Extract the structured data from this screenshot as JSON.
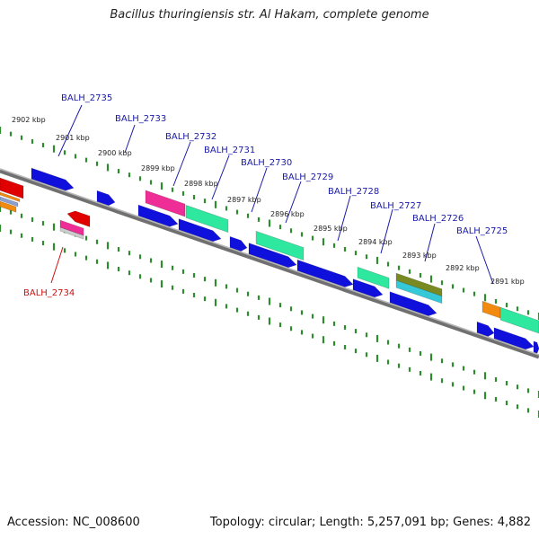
{
  "title": "Bacillus thuringiensis str. Al Hakam, complete genome",
  "footer": {
    "accession": "Accession: NC_008600",
    "summary": "Topology: circular; Length: 5,257,091 bp; Genes: 4,882"
  },
  "colors": {
    "forward_cds": "#1010dd",
    "reverse_cds": "#e00000",
    "gene_label_forward": "#1a1aa8",
    "gene_label_reverse": "#cc1111",
    "tick": "#2e8b2e",
    "backbone": "#707070",
    "pink": "#ee2e96",
    "aqua": "#2ee8a0",
    "orange": "#f28a10",
    "olive": "#7a8a22",
    "cyan": "#35c8d8",
    "grey": "#cccccc"
  },
  "kbp_labels": [
    "2902 kbp",
    "2901 kbp",
    "2900 kbp",
    "2899 kbp",
    "2898 kbp",
    "2897 kbp",
    "2896 kbp",
    "2895 kbp",
    "2894 kbp",
    "2893 kbp",
    "2892 kbp",
    "2891 kbp"
  ],
  "gene_labels": [
    {
      "text": "BALH_2735",
      "strand": "forward"
    },
    {
      "text": "BALH_2733",
      "strand": "forward"
    },
    {
      "text": "BALH_2732",
      "strand": "forward"
    },
    {
      "text": "BALH_2731",
      "strand": "forward"
    },
    {
      "text": "BALH_2730",
      "strand": "forward"
    },
    {
      "text": "BALH_2729",
      "strand": "forward"
    },
    {
      "text": "BALH_2728",
      "strand": "forward"
    },
    {
      "text": "BALH_2727",
      "strand": "forward"
    },
    {
      "text": "BALH_2726",
      "strand": "forward"
    },
    {
      "text": "BALH_2725",
      "strand": "forward"
    },
    {
      "text": "BALH_2734",
      "strand": "reverse"
    }
  ]
}
